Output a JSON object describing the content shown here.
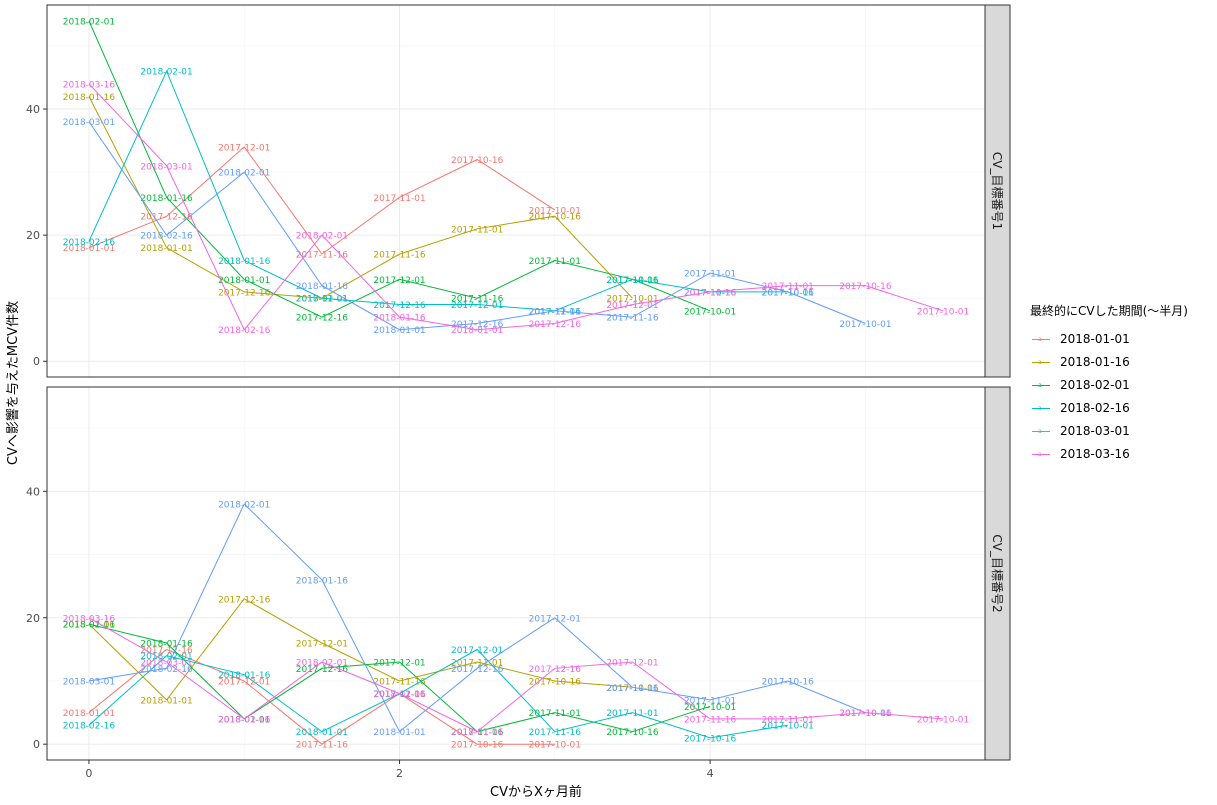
{
  "chart_data": {
    "type": "line",
    "xlabel": "CVからXヶ月前",
    "ylabel": "CVへ影響を与えたMCV件数",
    "xlim": [
      -0.27,
      5.77
    ],
    "ylim": [
      -2.5,
      56.5
    ],
    "x_ticks": [
      0,
      2,
      4
    ],
    "y_ticks": [
      0,
      20,
      40
    ],
    "grid": true,
    "legend": {
      "title": "最終的にCVした期間(〜半月)",
      "position": "right",
      "entries": [
        "2018-01-01",
        "2018-01-16",
        "2018-02-01",
        "2018-02-16",
        "2018-03-01",
        "2018-03-16"
      ]
    },
    "series_colors": {
      "2018-01-01": "#F8766D",
      "2018-01-16": "#B79F00",
      "2018-02-01": "#00BA38",
      "2018-02-16": "#00BFC4",
      "2018-03-01": "#619CFF",
      "2018-03-16": "#F564E3"
    },
    "panels": [
      {
        "strip": "CV_目標番号1",
        "series": [
          {
            "name": "2018-01-01",
            "points": [
              {
                "x": 0,
                "y": 18,
                "label": "2018-01-01"
              },
              {
                "x": 0.5,
                "y": 23,
                "label": "2017-12-16"
              },
              {
                "x": 1,
                "y": 34,
                "label": "2017-12-01"
              },
              {
                "x": 1.5,
                "y": 17,
                "label": "2017-11-16"
              },
              {
                "x": 2,
                "y": 26,
                "label": "2017-11-01"
              },
              {
                "x": 2.5,
                "y": 32,
                "label": "2017-10-16"
              },
              {
                "x": 3,
                "y": 24,
                "label": "2017-10-01"
              }
            ]
          },
          {
            "name": "2018-01-16",
            "points": [
              {
                "x": 0,
                "y": 42,
                "label": "2018-01-16"
              },
              {
                "x": 0.5,
                "y": 18,
                "label": "2018-01-01"
              },
              {
                "x": 1,
                "y": 11,
                "label": "2017-12-16"
              },
              {
                "x": 1.5,
                "y": 10,
                "label": "2017-12-01"
              },
              {
                "x": 2,
                "y": 17,
                "label": "2017-11-16"
              },
              {
                "x": 2.5,
                "y": 21,
                "label": "2017-11-01"
              },
              {
                "x": 3,
                "y": 23,
                "label": "2017-10-16"
              },
              {
                "x": 3.5,
                "y": 10,
                "label": "2017-10-01"
              }
            ]
          },
          {
            "name": "2018-02-01",
            "points": [
              {
                "x": 0,
                "y": 54,
                "label": "2018-02-01"
              },
              {
                "x": 0.5,
                "y": 26,
                "label": "2018-01-16"
              },
              {
                "x": 1,
                "y": 13,
                "label": "2018-01-01"
              },
              {
                "x": 1.5,
                "y": 7,
                "label": "2017-12-16"
              },
              {
                "x": 2,
                "y": 13,
                "label": "2017-12-01"
              },
              {
                "x": 2.5,
                "y": 10,
                "label": "2017-11-16"
              },
              {
                "x": 3,
                "y": 16,
                "label": "2017-11-01"
              },
              {
                "x": 3.5,
                "y": 13,
                "label": "2017-10-16"
              },
              {
                "x": 4,
                "y": 8,
                "label": "2017-10-01"
              }
            ]
          },
          {
            "name": "2018-02-16",
            "points": [
              {
                "x": 0,
                "y": 19,
                "label": "2018-02-16"
              },
              {
                "x": 0.5,
                "y": 46,
                "label": "2018-02-01"
              },
              {
                "x": 1,
                "y": 16,
                "label": "2018-01-16"
              },
              {
                "x": 1.5,
                "y": 10,
                "label": "2018-01-01"
              },
              {
                "x": 2,
                "y": 9,
                "label": "2017-12-16"
              },
              {
                "x": 2.5,
                "y": 9,
                "label": "2017-12-01"
              },
              {
                "x": 3,
                "y": 8,
                "label": "2017-11-16"
              },
              {
                "x": 3.5,
                "y": 13,
                "label": "2017-11-01"
              },
              {
                "x": 4,
                "y": 11,
                "label": "2017-10-16"
              },
              {
                "x": 4.5,
                "y": 11,
                "label": "2017-10-01"
              }
            ]
          },
          {
            "name": "2018-03-01",
            "points": [
              {
                "x": 0,
                "y": 38,
                "label": "2018-03-01"
              },
              {
                "x": 0.5,
                "y": 20,
                "label": "2018-02-16"
              },
              {
                "x": 1,
                "y": 30,
                "label": "2018-02-01"
              },
              {
                "x": 1.5,
                "y": 12,
                "label": "2018-01-16"
              },
              {
                "x": 2,
                "y": 5,
                "label": "2018-01-01"
              },
              {
                "x": 2.5,
                "y": 6,
                "label": "2017-12-16"
              },
              {
                "x": 3,
                "y": 8,
                "label": "2017-12-01"
              },
              {
                "x": 3.5,
                "y": 7,
                "label": "2017-11-16"
              },
              {
                "x": 4,
                "y": 14,
                "label": "2017-11-01"
              },
              {
                "x": 4.5,
                "y": 11,
                "label": "2017-10-16"
              },
              {
                "x": 5,
                "y": 6,
                "label": "2017-10-01"
              }
            ]
          },
          {
            "name": "2018-03-16",
            "points": [
              {
                "x": 0,
                "y": 44,
                "label": "2018-03-16"
              },
              {
                "x": 0.5,
                "y": 31,
                "label": "2018-03-01"
              },
              {
                "x": 1,
                "y": 5,
                "label": "2018-02-16"
              },
              {
                "x": 1.5,
                "y": 20,
                "label": "2018-02-01"
              },
              {
                "x": 2,
                "y": 7,
                "label": "2018-01-16"
              },
              {
                "x": 2.5,
                "y": 5,
                "label": "2018-01-01"
              },
              {
                "x": 3,
                "y": 6,
                "label": "2017-12-16"
              },
              {
                "x": 3.5,
                "y": 9,
                "label": "2017-12-01"
              },
              {
                "x": 4,
                "y": 11,
                "label": "2017-11-16"
              },
              {
                "x": 4.5,
                "y": 12,
                "label": "2017-11-01"
              },
              {
                "x": 5,
                "y": 12,
                "label": "2017-10-16"
              },
              {
                "x": 5.5,
                "y": 8,
                "label": "2017-10-01"
              }
            ]
          }
        ]
      },
      {
        "strip": "CV_目標番号2",
        "series": [
          {
            "name": "2018-01-01",
            "points": [
              {
                "x": 0,
                "y": 5,
                "label": "2018-01-01"
              },
              {
                "x": 0.5,
                "y": 15,
                "label": "2017-12-16"
              },
              {
                "x": 1,
                "y": 10,
                "label": "2017-12-01"
              },
              {
                "x": 1.5,
                "y": 0,
                "label": "2017-11-16"
              },
              {
                "x": 2,
                "y": 8,
                "label": "2017-11-01"
              },
              {
                "x": 2.5,
                "y": 0,
                "label": "2017-10-16"
              },
              {
                "x": 3,
                "y": 0,
                "label": "2017-10-01"
              }
            ]
          },
          {
            "name": "2018-01-16",
            "points": [
              {
                "x": 0,
                "y": 19,
                "label": "2018-01-16"
              },
              {
                "x": 0.5,
                "y": 7,
                "label": "2018-01-01"
              },
              {
                "x": 1,
                "y": 23,
                "label": "2017-12-16"
              },
              {
                "x": 1.5,
                "y": 16,
                "label": "2017-12-01"
              },
              {
                "x": 2,
                "y": 10,
                "label": "2017-11-16"
              },
              {
                "x": 2.5,
                "y": 13,
                "label": "2017-11-01"
              },
              {
                "x": 3,
                "y": 10,
                "label": "2017-10-16"
              },
              {
                "x": 3.5,
                "y": 9,
                "label": "2017-10-01"
              }
            ]
          },
          {
            "name": "2018-02-01",
            "points": [
              {
                "x": 0,
                "y": 19,
                "label": "2018-02-01"
              },
              {
                "x": 0.5,
                "y": 16,
                "label": "2018-01-16"
              },
              {
                "x": 1,
                "y": 4,
                "label": "2018-01-01"
              },
              {
                "x": 1.5,
                "y": 12,
                "label": "2017-12-16"
              },
              {
                "x": 2,
                "y": 13,
                "label": "2017-12-01"
              },
              {
                "x": 2.5,
                "y": 2,
                "label": "2017-11-16"
              },
              {
                "x": 3,
                "y": 5,
                "label": "2017-11-01"
              },
              {
                "x": 3.5,
                "y": 2,
                "label": "2017-10-16"
              },
              {
                "x": 4,
                "y": 6,
                "label": "2017-10-01"
              }
            ]
          },
          {
            "name": "2018-02-16",
            "points": [
              {
                "x": 0,
                "y": 3,
                "label": "2018-02-16"
              },
              {
                "x": 0.5,
                "y": 14,
                "label": "2018-02-01"
              },
              {
                "x": 1,
                "y": 11,
                "label": "2018-01-16"
              },
              {
                "x": 1.5,
                "y": 2,
                "label": "2018-01-01"
              },
              {
                "x": 2,
                "y": 8,
                "label": "2017-12-16"
              },
              {
                "x": 2.5,
                "y": 15,
                "label": "2017-12-01"
              },
              {
                "x": 3,
                "y": 2,
                "label": "2017-11-16"
              },
              {
                "x": 3.5,
                "y": 5,
                "label": "2017-11-01"
              },
              {
                "x": 4,
                "y": 1,
                "label": "2017-10-16"
              },
              {
                "x": 4.5,
                "y": 3,
                "label": "2017-10-01"
              }
            ]
          },
          {
            "name": "2018-03-01",
            "points": [
              {
                "x": 0,
                "y": 10,
                "label": "2018-03-01"
              },
              {
                "x": 0.5,
                "y": 12,
                "label": "2018-02-16"
              },
              {
                "x": 1,
                "y": 38,
                "label": "2018-02-01"
              },
              {
                "x": 1.5,
                "y": 26,
                "label": "2018-01-16"
              },
              {
                "x": 2,
                "y": 2,
                "label": "2018-01-01"
              },
              {
                "x": 2.5,
                "y": 12,
                "label": "2017-12-16"
              },
              {
                "x": 3,
                "y": 20,
                "label": "2017-12-01"
              },
              {
                "x": 3.5,
                "y": 9,
                "label": "2017-11-16"
              },
              {
                "x": 4,
                "y": 7,
                "label": "2017-11-01"
              },
              {
                "x": 4.5,
                "y": 10,
                "label": "2017-10-16"
              },
              {
                "x": 5,
                "y": 5,
                "label": "2017-10-01"
              }
            ]
          },
          {
            "name": "2018-03-16",
            "points": [
              {
                "x": 0,
                "y": 20,
                "label": "2018-03-16"
              },
              {
                "x": 0.5,
                "y": 13,
                "label": "2018-03-01"
              },
              {
                "x": 1,
                "y": 4,
                "label": "2018-02-16"
              },
              {
                "x": 1.5,
                "y": 13,
                "label": "2018-02-01"
              },
              {
                "x": 2,
                "y": 8,
                "label": "2018-01-16"
              },
              {
                "x": 2.5,
                "y": 2,
                "label": "2018-01-01"
              },
              {
                "x": 3,
                "y": 12,
                "label": "2017-12-16"
              },
              {
                "x": 3.5,
                "y": 13,
                "label": "2017-12-01"
              },
              {
                "x": 4,
                "y": 4,
                "label": "2017-11-16"
              },
              {
                "x": 4.5,
                "y": 4,
                "label": "2017-11-01"
              },
              {
                "x": 5,
                "y": 5,
                "label": "2017-10-16"
              },
              {
                "x": 5.5,
                "y": 4,
                "label": "2017-10-01"
              }
            ]
          }
        ]
      }
    ]
  }
}
